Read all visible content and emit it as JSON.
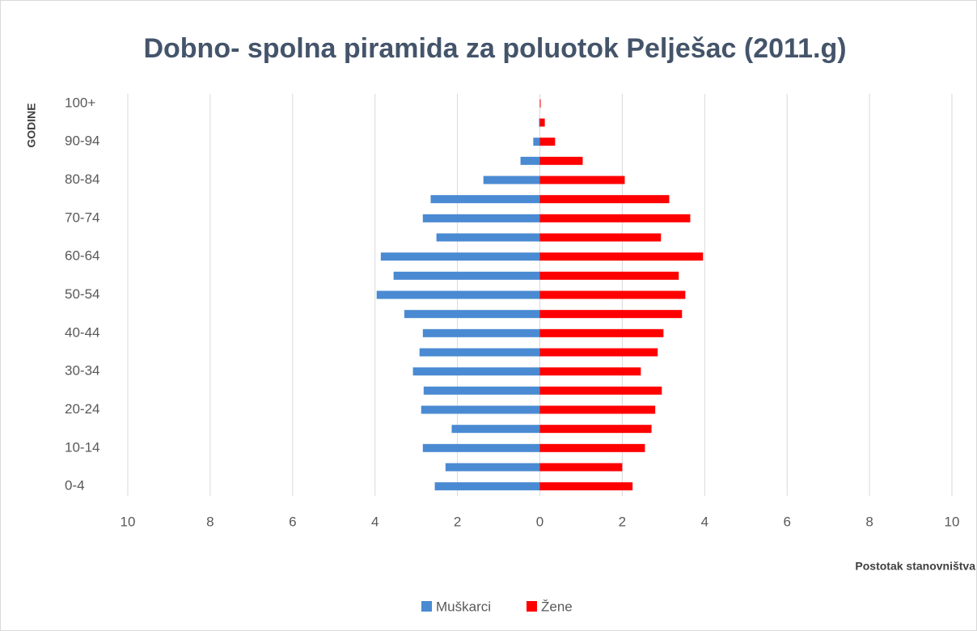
{
  "chart_data": {
    "type": "bar",
    "orientation": "horizontal",
    "title": "Dobno- spolna piramida za poluotok Pelješac (2011.g)",
    "x_label": "Postotak stanovništva",
    "y_label": "GODINE",
    "categories": [
      "0-4",
      null,
      "10-14",
      null,
      "20-24",
      null,
      "30-34",
      null,
      "40-44",
      null,
      "50-54",
      null,
      "60-64",
      null,
      "70-74",
      null,
      "80-84",
      null,
      "90-94",
      null,
      "100+"
    ],
    "series": [
      {
        "name": "Muškarci",
        "color": "#4a8ad2",
        "values": [
          -2.55,
          -2.29,
          -2.84,
          -2.14,
          -2.88,
          -2.82,
          -3.08,
          -2.92,
          -2.84,
          -3.29,
          -3.96,
          -3.55,
          -3.86,
          -2.51,
          -2.84,
          -2.65,
          -1.37,
          -0.47,
          -0.16,
          -0.02,
          0
        ]
      },
      {
        "name": "Žene",
        "color": "#ff0000",
        "values": [
          2.25,
          2.0,
          2.55,
          2.71,
          2.8,
          2.96,
          2.45,
          2.86,
          3.0,
          3.45,
          3.53,
          3.37,
          3.96,
          2.94,
          3.65,
          3.14,
          2.06,
          1.04,
          0.37,
          0.12,
          0.02
        ]
      }
    ],
    "xlim": [
      -10,
      10
    ],
    "xticks": [
      {
        "value": -10,
        "label": "10"
      },
      {
        "value": -8,
        "label": "8"
      },
      {
        "value": -6,
        "label": "6"
      },
      {
        "value": -4,
        "label": "4"
      },
      {
        "value": -2,
        "label": "2"
      },
      0,
      2,
      4,
      6,
      8,
      10
    ],
    "grid": true,
    "legend": "bottom"
  }
}
